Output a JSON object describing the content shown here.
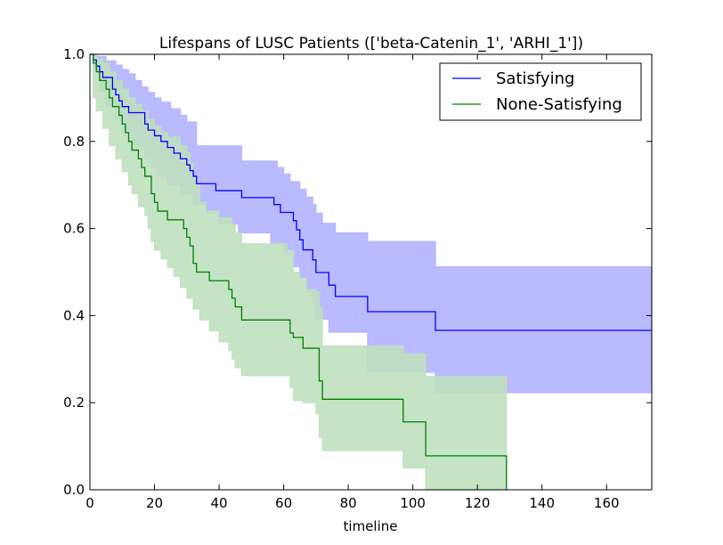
{
  "chart_data": {
    "type": "line",
    "title": "Lifespans of LUSC Patients (['beta-Catenin_1', 'ARHI_1'])",
    "xlabel": "timeline",
    "ylabel": "",
    "xlim": [
      0,
      174
    ],
    "ylim": [
      0,
      1.0
    ],
    "xticks": [
      0,
      20,
      40,
      60,
      80,
      100,
      120,
      140,
      160
    ],
    "yticks": [
      0.0,
      0.2,
      0.4,
      0.6,
      0.8,
      1.0
    ],
    "xtick_labels": [
      "0",
      "20",
      "40",
      "60",
      "80",
      "100",
      "120",
      "140",
      "160"
    ],
    "ytick_labels": [
      "0.0",
      "0.2",
      "0.4",
      "0.6",
      "0.8",
      "1.0"
    ],
    "grid": false,
    "legend_position": "top-right",
    "series": [
      {
        "name": "Satisfying",
        "color": "#0000ff",
        "ci_color": "#b2b2ff",
        "ci_opacity": 0.9,
        "points": [
          [
            0,
            1.0
          ],
          [
            1,
            0.987
          ],
          [
            2,
            0.973
          ],
          [
            3,
            0.96
          ],
          [
            4,
            0.947
          ],
          [
            7,
            0.92
          ],
          [
            8,
            0.907
          ],
          [
            9,
            0.893
          ],
          [
            10,
            0.88
          ],
          [
            12,
            0.866
          ],
          [
            17,
            0.84
          ],
          [
            18,
            0.826
          ],
          [
            20,
            0.813
          ],
          [
            22,
            0.8
          ],
          [
            24,
            0.786
          ],
          [
            26,
            0.773
          ],
          [
            28,
            0.76
          ],
          [
            30,
            0.746
          ],
          [
            31,
            0.733
          ],
          [
            32,
            0.72
          ],
          [
            33,
            0.703
          ],
          [
            39,
            0.687
          ],
          [
            47,
            0.671
          ],
          [
            57,
            0.655
          ],
          [
            59,
            0.637
          ],
          [
            63,
            0.618
          ],
          [
            64,
            0.597
          ],
          [
            65,
            0.574
          ],
          [
            66,
            0.551
          ],
          [
            69,
            0.528
          ],
          [
            70,
            0.499
          ],
          [
            74,
            0.47
          ],
          [
            76,
            0.444
          ],
          [
            86,
            0.409
          ],
          [
            107,
            0.366
          ],
          [
            174,
            0.366
          ]
        ],
        "ci_upper": [
          [
            0,
            1.0
          ],
          [
            2,
            0.995
          ],
          [
            5,
            0.985
          ],
          [
            8,
            0.975
          ],
          [
            10,
            0.965
          ],
          [
            12,
            0.955
          ],
          [
            14,
            0.94
          ],
          [
            16,
            0.925
          ],
          [
            18,
            0.912
          ],
          [
            20,
            0.9
          ],
          [
            22,
            0.89
          ],
          [
            25,
            0.875
          ],
          [
            28,
            0.86
          ],
          [
            30,
            0.845
          ],
          [
            33,
            0.832
          ],
          [
            33,
            0.79
          ],
          [
            47,
            0.79
          ],
          [
            47,
            0.755
          ],
          [
            57,
            0.755
          ],
          [
            58,
            0.74
          ],
          [
            60,
            0.725
          ],
          [
            62,
            0.708
          ],
          [
            65,
            0.69
          ],
          [
            67,
            0.672
          ],
          [
            69,
            0.655
          ],
          [
            70,
            0.635
          ],
          [
            72,
            0.612
          ],
          [
            76,
            0.59
          ],
          [
            86,
            0.57
          ],
          [
            107,
            0.57
          ],
          [
            107,
            0.512
          ],
          [
            174,
            0.512
          ]
        ],
        "ci_lower": [
          [
            0,
            1.0
          ],
          [
            1,
            0.96
          ],
          [
            3,
            0.915
          ],
          [
            5,
            0.88
          ],
          [
            8,
            0.85
          ],
          [
            10,
            0.82
          ],
          [
            13,
            0.79
          ],
          [
            17,
            0.76
          ],
          [
            19,
            0.74
          ],
          [
            21,
            0.72
          ],
          [
            24,
            0.7
          ],
          [
            28,
            0.68
          ],
          [
            32,
            0.655
          ],
          [
            36,
            0.635
          ],
          [
            40,
            0.61
          ],
          [
            46,
            0.59
          ],
          [
            56,
            0.565
          ],
          [
            60,
            0.54
          ],
          [
            63,
            0.512
          ],
          [
            65,
            0.485
          ],
          [
            67,
            0.455
          ],
          [
            69,
            0.428
          ],
          [
            70,
            0.392
          ],
          [
            74,
            0.362
          ],
          [
            86,
            0.3
          ],
          [
            86,
            0.27
          ],
          [
            107,
            0.27
          ],
          [
            107,
            0.223
          ],
          [
            174,
            0.223
          ]
        ]
      },
      {
        "name": "None-Satisfying",
        "color": "#008000",
        "ci_color": "#bfe0bf",
        "ci_opacity": 0.9,
        "points": [
          [
            0,
            1.0
          ],
          [
            1,
            0.98
          ],
          [
            2,
            0.96
          ],
          [
            3,
            0.94
          ],
          [
            5,
            0.92
          ],
          [
            6,
            0.9
          ],
          [
            7,
            0.88
          ],
          [
            9,
            0.86
          ],
          [
            10,
            0.84
          ],
          [
            11,
            0.82
          ],
          [
            12,
            0.8
          ],
          [
            13,
            0.78
          ],
          [
            15,
            0.76
          ],
          [
            16,
            0.74
          ],
          [
            17,
            0.72
          ],
          [
            19,
            0.68
          ],
          [
            20,
            0.66
          ],
          [
            21,
            0.64
          ],
          [
            24,
            0.62
          ],
          [
            29,
            0.6
          ],
          [
            30,
            0.58
          ],
          [
            31,
            0.56
          ],
          [
            32,
            0.52
          ],
          [
            33,
            0.5
          ],
          [
            37,
            0.48
          ],
          [
            43,
            0.46
          ],
          [
            44,
            0.44
          ],
          [
            45,
            0.42
          ],
          [
            47,
            0.39
          ],
          [
            61,
            0.39
          ],
          [
            62,
            0.36
          ],
          [
            63,
            0.35
          ],
          [
            66,
            0.325
          ],
          [
            70,
            0.325
          ],
          [
            71,
            0.25
          ],
          [
            72,
            0.208
          ],
          [
            96,
            0.208
          ],
          [
            97,
            0.156
          ],
          [
            104,
            0.156
          ],
          [
            104,
            0.078
          ],
          [
            129,
            0.078
          ],
          [
            129,
            0.0
          ]
        ],
        "ci_upper": [
          [
            0,
            1.0
          ],
          [
            2,
            0.99
          ],
          [
            4,
            0.98
          ],
          [
            6,
            0.96
          ],
          [
            8,
            0.94
          ],
          [
            10,
            0.92
          ],
          [
            12,
            0.9
          ],
          [
            14,
            0.885
          ],
          [
            16,
            0.87
          ],
          [
            18,
            0.85
          ],
          [
            20,
            0.835
          ],
          [
            22,
            0.82
          ],
          [
            24,
            0.81
          ],
          [
            28,
            0.79
          ],
          [
            30,
            0.775
          ],
          [
            31,
            0.75
          ],
          [
            32,
            0.72
          ],
          [
            33,
            0.7
          ],
          [
            34,
            0.66
          ],
          [
            36,
            0.64
          ],
          [
            40,
            0.625
          ],
          [
            44,
            0.61
          ],
          [
            45,
            0.59
          ],
          [
            47,
            0.565
          ],
          [
            61,
            0.55
          ],
          [
            63,
            0.5
          ],
          [
            65,
            0.485
          ],
          [
            67,
            0.46
          ],
          [
            70,
            0.455
          ],
          [
            71,
            0.42
          ],
          [
            72,
            0.33
          ],
          [
            96,
            0.33
          ],
          [
            97,
            0.312
          ],
          [
            104,
            0.312
          ],
          [
            104,
            0.26
          ],
          [
            129,
            0.26
          ],
          [
            129,
            0.0
          ]
        ],
        "ci_lower": [
          [
            0,
            1.0
          ],
          [
            1,
            0.9
          ],
          [
            2,
            0.87
          ],
          [
            4,
            0.83
          ],
          [
            6,
            0.79
          ],
          [
            8,
            0.76
          ],
          [
            10,
            0.73
          ],
          [
            12,
            0.7
          ],
          [
            13,
            0.68
          ],
          [
            15,
            0.65
          ],
          [
            17,
            0.63
          ],
          [
            18,
            0.6
          ],
          [
            19,
            0.57
          ],
          [
            20,
            0.55
          ],
          [
            22,
            0.53
          ],
          [
            24,
            0.51
          ],
          [
            26,
            0.49
          ],
          [
            28,
            0.465
          ],
          [
            30,
            0.44
          ],
          [
            32,
            0.415
          ],
          [
            34,
            0.39
          ],
          [
            37,
            0.365
          ],
          [
            40,
            0.34
          ],
          [
            43,
            0.32
          ],
          [
            44,
            0.3
          ],
          [
            45,
            0.28
          ],
          [
            47,
            0.262
          ],
          [
            61,
            0.262
          ],
          [
            62,
            0.235
          ],
          [
            63,
            0.205
          ],
          [
            66,
            0.2
          ],
          [
            70,
            0.175
          ],
          [
            71,
            0.12
          ],
          [
            72,
            0.09
          ],
          [
            96,
            0.09
          ],
          [
            97,
            0.05
          ],
          [
            104,
            0.05
          ],
          [
            104,
            0.0
          ],
          [
            129,
            0.0
          ]
        ]
      }
    ]
  }
}
